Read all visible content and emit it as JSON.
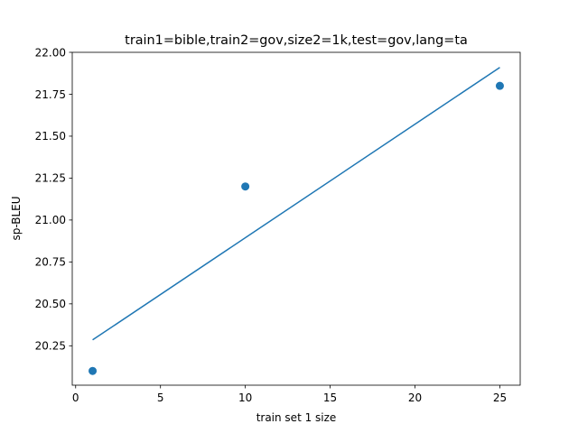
{
  "chart_data": {
    "type": "scatter",
    "title": "train1=bible,train2=gov,size2=1k,test=gov,lang=ta",
    "xlabel": "train set 1 size",
    "ylabel": "sp-BLEU",
    "xlim": [
      -0.2,
      26.2
    ],
    "ylim": [
      20.015,
      22.0
    ],
    "xticks": [
      0,
      5,
      10,
      15,
      20,
      25
    ],
    "xtick_labels": [
      "0",
      "5",
      "10",
      "15",
      "20",
      "25"
    ],
    "yticks": [
      20.25,
      20.5,
      20.75,
      21.0,
      21.25,
      21.5,
      21.75,
      22.0
    ],
    "ytick_labels": [
      "20.25",
      "20.50",
      "20.75",
      "21.00",
      "21.25",
      "21.50",
      "21.75",
      "22.00"
    ],
    "grid": false,
    "series": [
      {
        "kind": "scatter",
        "color": "#1f77b4",
        "x": [
          1,
          10,
          25
        ],
        "y": [
          20.1,
          21.2,
          21.8
        ]
      },
      {
        "kind": "line",
        "color": "#1f77b4",
        "x": [
          1,
          25
        ],
        "y": [
          20.285,
          21.91
        ]
      }
    ]
  }
}
